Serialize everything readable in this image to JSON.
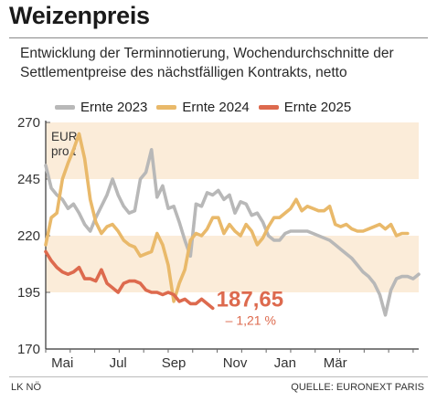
{
  "title": "Weizenpreis",
  "subtitle": "Entwicklung der Terminnotierung, Wochendurchschnitte der Settlementpreise des nächstfälligen Kontrakts, netto",
  "footer": {
    "left": "LK NÖ",
    "right": "QUELLE: EURONEXT PARIS"
  },
  "chart_data": {
    "type": "line",
    "unit_label": [
      "EUR",
      "pro t"
    ],
    "ylim": [
      170,
      270
    ],
    "y_ticks": [
      170,
      195,
      220,
      245,
      270
    ],
    "x_ticks": [
      "Mai",
      "Jul",
      "Sep",
      "Nov",
      "Jan",
      "Mär"
    ],
    "bands": [
      [
        245,
        270
      ],
      [
        195,
        220
      ]
    ],
    "legend_position": "top",
    "colors": {
      "Ernte 2023": "#b8b8b8",
      "Ernte 2024": "#e9b96a",
      "Ernte 2025": "#dd6a4e",
      "band": "#fbecd9",
      "axis": "#333333"
    },
    "series": [
      {
        "name": "Ernte 2023",
        "values": [
          251,
          241,
          238,
          236,
          232,
          234,
          230,
          225,
          222,
          228,
          233,
          238,
          245,
          238,
          233,
          230,
          231,
          245,
          248,
          258,
          237,
          242,
          232,
          233,
          226,
          218,
          211,
          234,
          233,
          239,
          238,
          240,
          236,
          238,
          230,
          235,
          234,
          229,
          230,
          226,
          220,
          218,
          218,
          221,
          222,
          222,
          222,
          222,
          221,
          220,
          219,
          218,
          216,
          214,
          212,
          210,
          207,
          204,
          202,
          199,
          194,
          185,
          196,
          201,
          202,
          202,
          201,
          203
        ]
      },
      {
        "name": "Ernte 2024",
        "values": [
          216,
          228,
          230,
          245,
          252,
          258,
          265,
          254,
          236,
          226,
          221,
          224,
          225,
          222,
          218,
          216,
          215,
          211,
          212,
          213,
          221,
          216,
          207,
          191,
          199,
          205,
          218,
          221,
          220,
          223,
          228,
          228,
          221,
          225,
          222,
          220,
          225,
          222,
          216,
          219,
          224,
          228,
          228,
          230,
          232,
          236,
          231,
          233,
          232,
          231,
          231,
          233,
          225,
          224,
          225,
          223,
          222,
          222,
          223,
          224,
          225,
          223,
          225,
          220,
          221,
          221
        ]
      },
      {
        "name": "Ernte 2025",
        "values": [
          213,
          209,
          206,
          204,
          203,
          204,
          206,
          201,
          201,
          200,
          205,
          199,
          197,
          195,
          199,
          200,
          200,
          199,
          196,
          195,
          195,
          194,
          195,
          194,
          191,
          192,
          190,
          190,
          192,
          190,
          188
        ]
      }
    ],
    "annotation": {
      "value": "187,65",
      "change": "– 1,21 %"
    }
  }
}
